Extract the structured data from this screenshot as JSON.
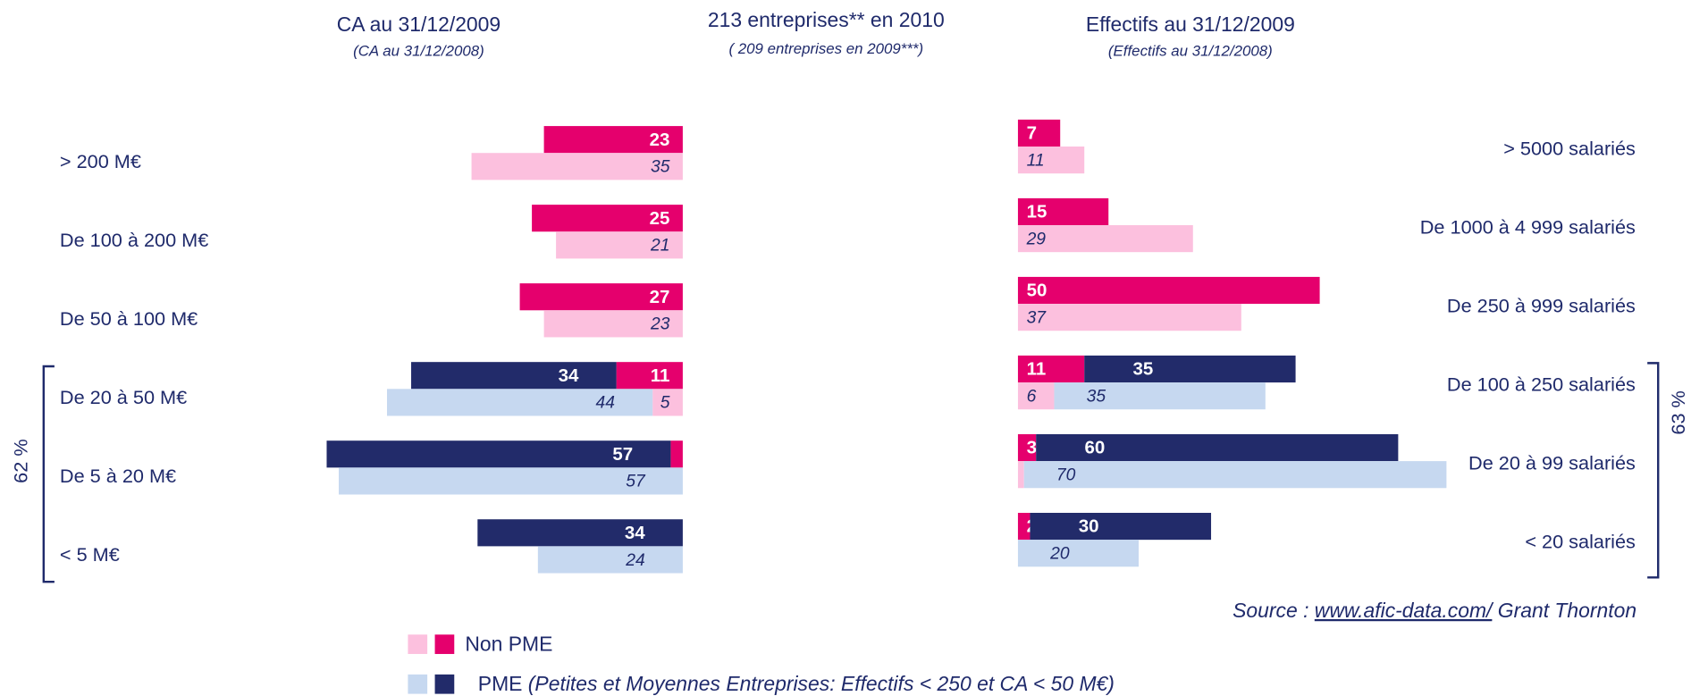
{
  "header": {
    "title": "213 entreprises** en 2010",
    "subtitle": "( 209 entreprises en 2009***)"
  },
  "source": {
    "prefix": "Source : ",
    "link": "www.afic-data.com/",
    "suffix": " Grant Thornton"
  },
  "legend_note": "(Petites et Moyennes Entreprises: Effectifs < 250 et CA < 50 M€)",
  "chart_data": [
    {
      "type": "bar",
      "title": "CA au 31/12/2009",
      "subtitle": "(CA au 31/12/2008)",
      "categories": [
        "> 200 M€",
        "De 100 à 200 M€",
        "De 50 à 100 M€",
        "De 20 à 50 M€",
        "De 5 à 20 M€",
        "< 5 M€"
      ],
      "bracket_label": "62 %",
      "series": [
        {
          "name": "Non PME",
          "color": "#e5006d",
          "color_prior": "#fcc0de",
          "values": [
            23,
            25,
            27,
            11,
            2,
            null
          ],
          "values_prior": [
            35,
            21,
            23,
            5,
            null,
            null
          ]
        },
        {
          "name": "PME",
          "color": "#222b6a",
          "color_prior": "#c6d8f0",
          "values": [
            null,
            null,
            null,
            34,
            57,
            34
          ],
          "values_prior": [
            null,
            null,
            null,
            44,
            57,
            24
          ]
        }
      ]
    },
    {
      "type": "bar",
      "title": "Effectifs au 31/12/2009",
      "subtitle": "(Effectifs au 31/12/2008)",
      "categories": [
        "> 5000 salariés",
        "De 1000 à 4 999 salariés",
        "De 250 à 999 salariés",
        "De 100 à 250 salariés",
        "De 20 à 99 salariés",
        "< 20 salariés"
      ],
      "bracket_label": "63 %",
      "series": [
        {
          "name": "Non PME",
          "color": "#e5006d",
          "color_prior": "#fcc0de",
          "values": [
            7,
            15,
            50,
            11,
            3,
            2
          ],
          "values_prior": [
            11,
            29,
            37,
            6,
            1,
            null
          ]
        },
        {
          "name": "PME",
          "color": "#222b6a",
          "color_prior": "#c6d8f0",
          "values": [
            null,
            null,
            null,
            35,
            60,
            30
          ],
          "values_prior": [
            null,
            null,
            null,
            35,
            70,
            20
          ]
        }
      ]
    }
  ]
}
